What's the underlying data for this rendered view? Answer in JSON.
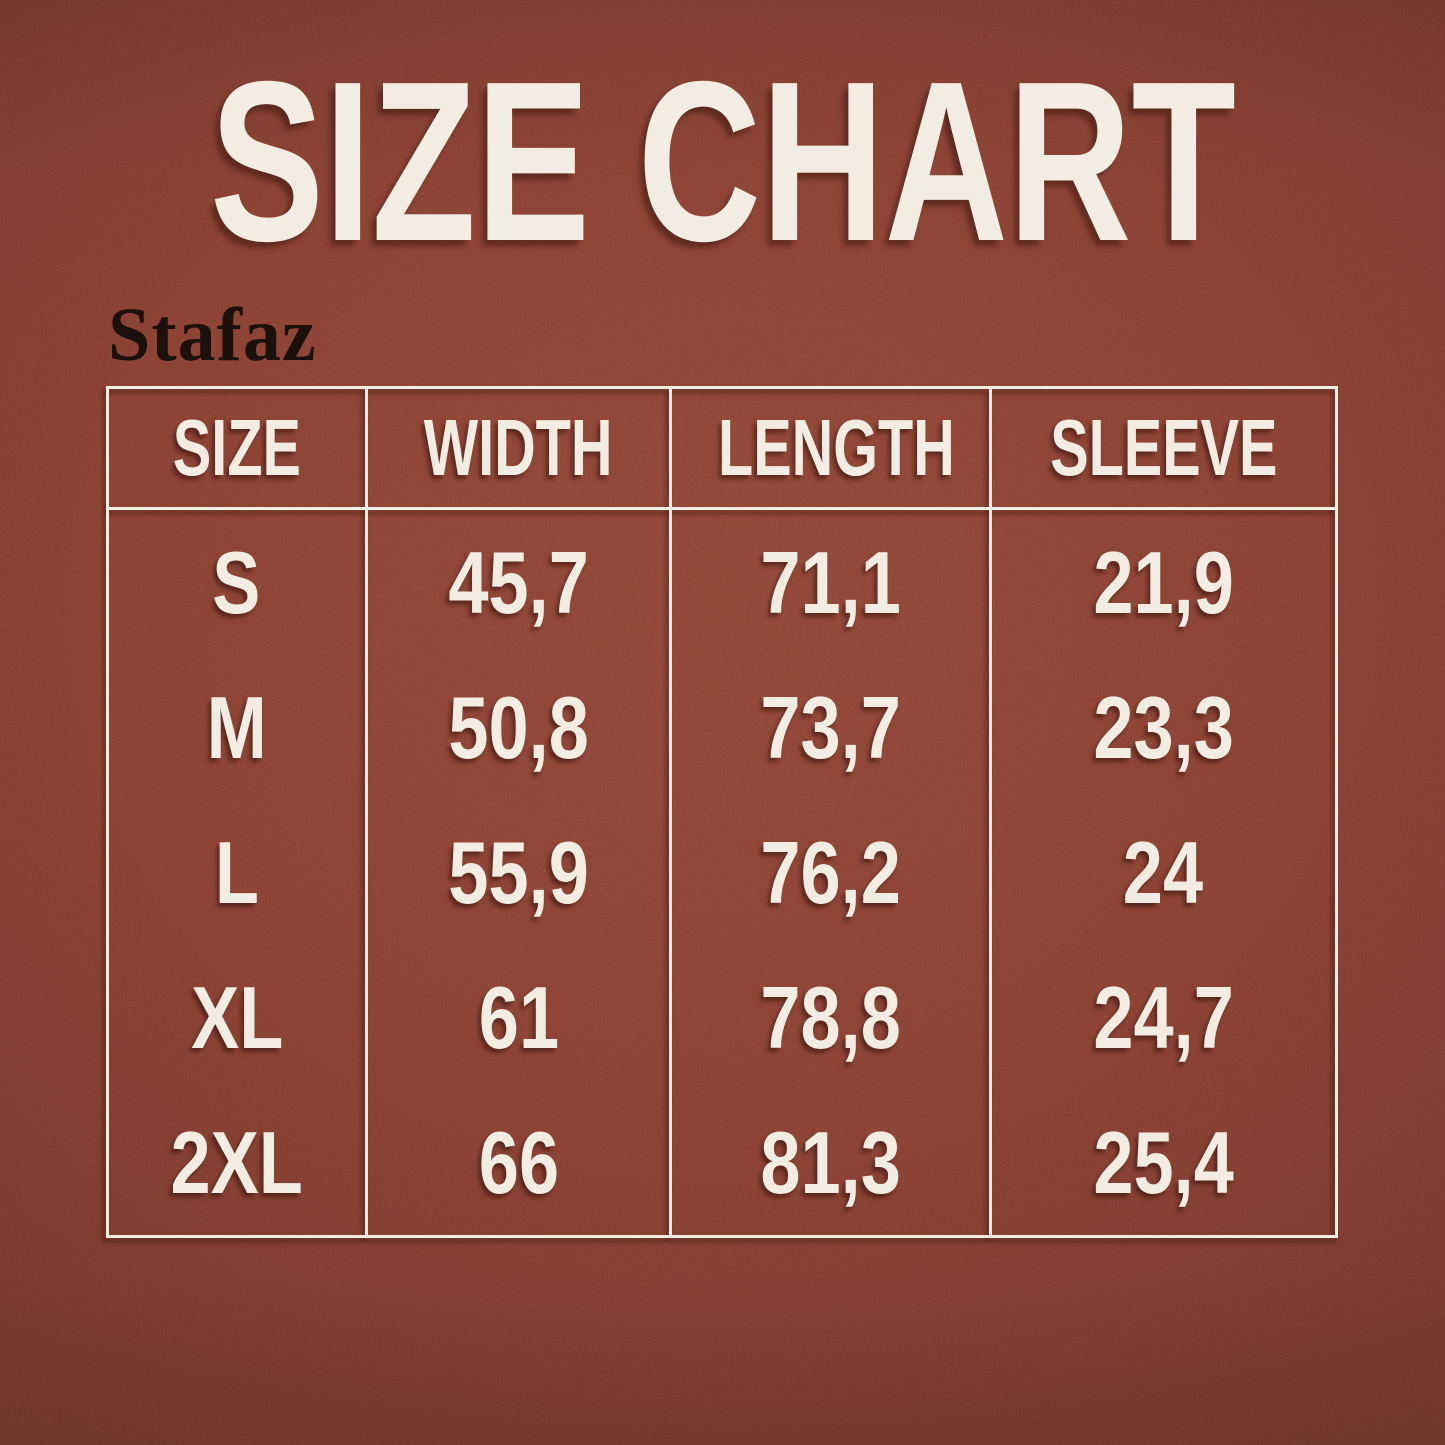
{
  "page_title": "SIZE CHART",
  "brand_label": "Stafaz",
  "chart_data": {
    "type": "table",
    "title": "SIZE CHART",
    "columns": [
      "SIZE",
      "WIDTH",
      "LENGTH",
      "SLEEVE"
    ],
    "rows": [
      [
        "S",
        "45,7",
        "71,1",
        "21,9"
      ],
      [
        "M",
        "50,8",
        "73,7",
        "23,3"
      ],
      [
        "L",
        "55,9",
        "76,2",
        "24"
      ],
      [
        "XL",
        "61",
        "78,8",
        "24,7"
      ],
      [
        "2XL",
        "66",
        "81,3",
        "25,4"
      ]
    ],
    "layout_hints": {
      "grid": "vertical column dividers only, no horizontal rules between body rows",
      "header_separator": true
    }
  },
  "colors": {
    "background": "#983e2d",
    "text": "#f2ece2",
    "table_line": "#f2ece2",
    "brand_text": "#1b100c"
  }
}
